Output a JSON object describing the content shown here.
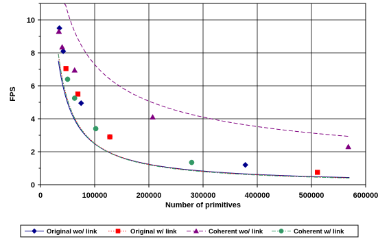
{
  "chart_data": {
    "type": "scatter",
    "title": "",
    "xlabel": "Number of primitives",
    "ylabel": "FPS",
    "xlim": [
      0,
      600000
    ],
    "ylim": [
      0,
      11
    ],
    "x_ticks": [
      0,
      100000,
      200000,
      300000,
      400000,
      500000,
      600000
    ],
    "y_ticks": [
      0,
      2,
      4,
      6,
      8,
      10
    ],
    "grid": true,
    "legend_position": "bottom",
    "series": [
      {
        "name": "Original wo/ link",
        "color": "#00008B",
        "marker": "diamond",
        "line_style": "solid",
        "points": [
          [
            35000,
            9.5
          ],
          [
            42000,
            8.1
          ],
          [
            75000,
            4.95
          ],
          [
            128000,
            2.9
          ],
          [
            378000,
            1.2
          ]
        ],
        "trend": {
          "a": 248000,
          "b": -1.0,
          "x_from": 33000,
          "x_to": 570000
        }
      },
      {
        "name": "Original w/ link",
        "color": "#FF0000",
        "marker": "square",
        "line_style": "dotted",
        "points": [
          [
            47000,
            7.05
          ],
          [
            69000,
            5.5
          ],
          [
            128000,
            2.9
          ],
          [
            511000,
            0.75
          ]
        ],
        "trend": {
          "a": 370000,
          "b": -1.0335,
          "x_from": 33000,
          "x_to": 570000
        }
      },
      {
        "name": "Coherent wo/ link",
        "color": "#800080",
        "marker": "triangle",
        "line_style": "dashed",
        "points": [
          [
            34000,
            9.3
          ],
          [
            40000,
            8.35
          ],
          [
            63000,
            6.95
          ],
          [
            207000,
            4.1
          ],
          [
            568000,
            2.3
          ]
        ],
        "trend": {
          "a": 3040,
          "b": -0.524,
          "x_from": 33000,
          "x_to": 570000
        }
      },
      {
        "name": "Coherent w/ link",
        "color": "#339966",
        "marker": "circle",
        "line_style": "dash-dot",
        "points": [
          [
            50000,
            6.4
          ],
          [
            63000,
            5.25
          ],
          [
            102000,
            3.4
          ],
          [
            279000,
            1.35
          ]
        ],
        "trend": {
          "a": 418000,
          "b": -1.045,
          "x_from": 33000,
          "x_to": 570000
        }
      }
    ]
  }
}
